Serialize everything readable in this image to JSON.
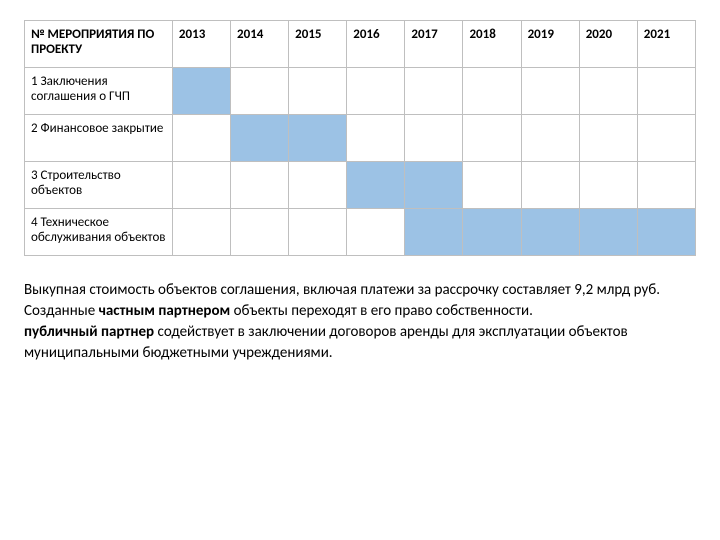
{
  "table": {
    "header_label": "№ МЕРОПРИЯТИЯ ПО ПРОЕКТУ",
    "years": [
      "2013",
      "2014",
      "2015",
      "2016",
      "2017",
      "2018",
      "2019",
      "2020",
      "2021"
    ],
    "rows": [
      {
        "num": "1",
        "label": "Заключения соглашения о ГЧП",
        "fill": [
          1,
          0,
          0,
          0,
          0,
          0,
          0,
          0,
          0
        ]
      },
      {
        "num": "2",
        "label": "Финансовое закрытие",
        "fill": [
          0,
          1,
          1,
          0,
          0,
          0,
          0,
          0,
          0
        ]
      },
      {
        "num": "3",
        "label": "Строительство объектов",
        "fill": [
          0,
          0,
          0,
          1,
          1,
          0,
          0,
          0,
          0
        ]
      },
      {
        "num": "4",
        "label": "Техническое обслуживания объектов",
        "fill": [
          0,
          0,
          0,
          0,
          1,
          1,
          1,
          1,
          1
        ]
      }
    ],
    "fill_color": "#9cc2e5",
    "border_color": "#bfbfbf"
  },
  "paragraph": {
    "line1a": "Выкупная стоимость объектов соглашения, включая платежи за рассрочку составляет ",
    "line1b": "9,2",
    "line1c": " млрд руб.",
    "line2a": "Созданные ",
    "line2b_bold": "частным партнером",
    "line2c": " объекты переходят в его право собственности.",
    "line3a_bold": "публичный партнер",
    "line3b": " содействует в заключении договоров аренды для эксплуатации объектов муниципальными бюджетными учреждениями."
  }
}
